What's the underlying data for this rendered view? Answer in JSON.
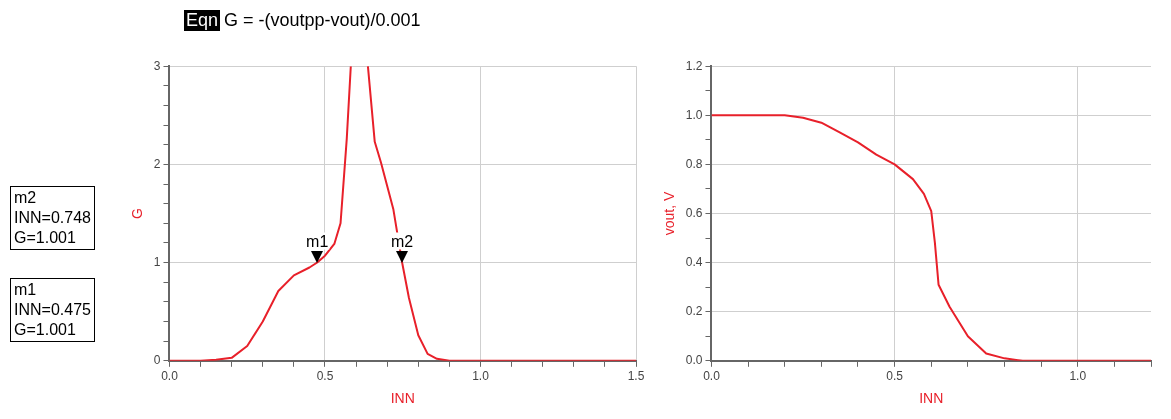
{
  "chart_data": [
    {
      "type": "line",
      "title": "G = -(voutpp-vout)/0.001",
      "subtitle": "Eqn",
      "xlabel": "INN",
      "ylabel": "G",
      "grid": true,
      "xlim": [
        0,
        1.5
      ],
      "ylim": [
        0,
        3
      ],
      "xticks": [
        {
          "value": 0,
          "label": "0.0"
        },
        {
          "value": 0.1,
          "label": null
        },
        {
          "value": 0.2,
          "label": null
        },
        {
          "value": 0.3,
          "label": null
        },
        {
          "value": 0.4,
          "label": null
        },
        {
          "value": 0.5,
          "label": "0.5"
        },
        {
          "value": 0.6,
          "label": null
        },
        {
          "value": 0.7,
          "label": null
        },
        {
          "value": 0.8,
          "label": null
        },
        {
          "value": 0.9,
          "label": null
        },
        {
          "value": 1,
          "label": "1.0"
        },
        {
          "value": 1.1,
          "label": null
        },
        {
          "value": 1.2,
          "label": null
        },
        {
          "value": 1.3,
          "label": null
        },
        {
          "value": 1.4,
          "label": null
        },
        {
          "value": 1.5,
          "label": "1.5"
        }
      ],
      "yticks": [
        0,
        {
          "value": 0.2,
          "label": null
        },
        {
          "value": 0.4,
          "label": null
        },
        {
          "value": 0.6,
          "label": null
        },
        {
          "value": 0.8,
          "label": null
        },
        1,
        {
          "value": 1.2,
          "label": null
        },
        {
          "value": 1.4,
          "label": null
        },
        {
          "value": 1.6,
          "label": null
        },
        {
          "value": 1.8,
          "label": null
        },
        2,
        {
          "value": 2.2,
          "label": null
        },
        {
          "value": 2.4,
          "label": null
        },
        {
          "value": 2.6,
          "label": null
        },
        {
          "value": 2.8,
          "label": null
        },
        3
      ],
      "series": [
        {
          "color": "#e8202a",
          "x": [
            0,
            0.1,
            0.15,
            0.2,
            0.25,
            0.3,
            0.35,
            0.4,
            0.45,
            0.475,
            0.5,
            0.53,
            0.55,
            0.57,
            0.583,
            0.61,
            0.638,
            0.66,
            0.68,
            0.7,
            0.72,
            0.748,
            0.77,
            0.8,
            0.83,
            0.86,
            0.9,
            1.5
          ],
          "values": [
            0,
            0,
            0.01,
            0.03,
            0.15,
            0.4,
            0.71,
            0.87,
            0.95,
            1.001,
            1.07,
            1.19,
            1.4,
            2.26,
            3,
            null,
            3,
            2.23,
            2.02,
            1.78,
            1.54,
            1.001,
            0.64,
            0.26,
            0.07,
            0.02,
            0,
            0
          ]
        }
      ],
      "annotations": [
        {
          "text": "m1",
          "x": 0.475,
          "y": 1.001
        },
        {
          "text": "m2",
          "x": 0.748,
          "y": 1.001
        },
        "m2\nINN=0.748\nG=1.001",
        "m1\nINN=0.475\nG=1.001"
      ]
    },
    {
      "type": "line",
      "xlabel": "INN",
      "ylabel": "vout, V",
      "grid": true,
      "xlim": [
        0,
        1.2
      ],
      "ylim": [
        0,
        1.2
      ],
      "xticks": [
        {
          "value": 0,
          "label": "0.0"
        },
        {
          "value": 0.1,
          "label": null
        },
        {
          "value": 0.2,
          "label": null
        },
        {
          "value": 0.3,
          "label": null
        },
        {
          "value": 0.4,
          "label": null
        },
        {
          "value": 0.5,
          "label": "0.5"
        },
        {
          "value": 0.6,
          "label": null
        },
        {
          "value": 0.7,
          "label": null
        },
        {
          "value": 0.8,
          "label": null
        },
        {
          "value": 0.9,
          "label": null
        },
        {
          "value": 1,
          "label": "1.0"
        },
        {
          "value": 1.1,
          "label": null
        },
        {
          "value": 1.2,
          "label": null
        }
      ],
      "yticks": [
        {
          "value": 0,
          "label": "0.0"
        },
        {
          "value": 0.1,
          "label": null
        },
        {
          "value": 0.2,
          "label": "0.2"
        },
        {
          "value": 0.3,
          "label": null
        },
        {
          "value": 0.4,
          "label": "0.4"
        },
        {
          "value": 0.5,
          "label": null
        },
        {
          "value": 0.6,
          "label": "0.6"
        },
        {
          "value": 0.7,
          "label": null
        },
        {
          "value": 0.8,
          "label": "0.8"
        },
        {
          "value": 0.9,
          "label": null
        },
        {
          "value": 1,
          "label": "1.0"
        },
        {
          "value": 1.1,
          "label": null
        },
        {
          "value": 1.2,
          "label": "1.2"
        }
      ],
      "series": [
        {
          "color": "#e8202a",
          "x": [
            0,
            0.2,
            0.25,
            0.3,
            0.35,
            0.4,
            0.45,
            0.5,
            0.55,
            0.58,
            0.6,
            0.61,
            0.62,
            0.65,
            0.7,
            0.75,
            0.8,
            0.85,
            1.2
          ],
          "values": [
            1,
            1,
            0.99,
            0.97,
            0.93,
            0.89,
            0.84,
            0.8,
            0.74,
            0.68,
            0.61,
            0.48,
            0.31,
            0.22,
            0.1,
            0.03,
            0.01,
            0,
            0
          ]
        }
      ]
    }
  ]
}
